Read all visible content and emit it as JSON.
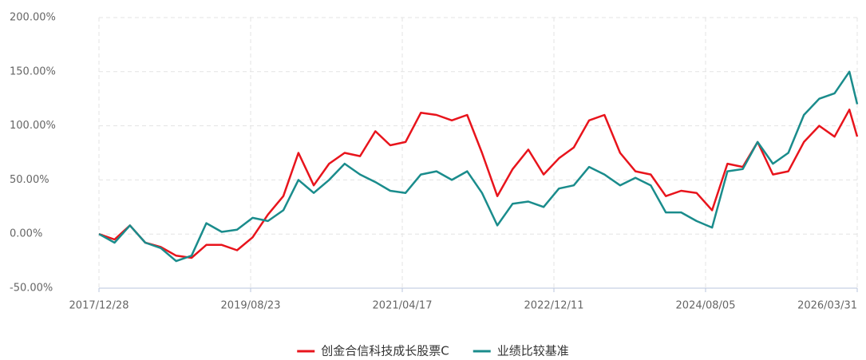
{
  "chart_data": {
    "type": "line",
    "x": [
      "2017/12/28",
      "2018/02/28",
      "2018/04/30",
      "2018/06/30",
      "2018/08/31",
      "2018/10/31",
      "2018/12/31",
      "2019/02/28",
      "2019/04/30",
      "2019/06/30",
      "2019/08/31",
      "2019/10/31",
      "2019/12/31",
      "2020/02/29",
      "2020/04/30",
      "2020/06/30",
      "2020/08/31",
      "2020/10/31",
      "2020/12/31",
      "2021/02/28",
      "2021/04/30",
      "2021/06/30",
      "2021/08/31",
      "2021/10/31",
      "2021/12/31",
      "2022/02/28",
      "2022/04/30",
      "2022/06/30",
      "2022/08/31",
      "2022/10/31",
      "2022/12/31",
      "2023/02/28",
      "2023/04/30",
      "2023/06/30",
      "2023/08/31",
      "2023/10/31",
      "2023/12/31",
      "2024/02/29",
      "2024/04/30",
      "2024/06/30",
      "2024/08/31",
      "2024/10/31",
      "2024/12/31",
      "2025/02/28",
      "2025/04/30",
      "2025/06/30",
      "2025/08/31",
      "2025/10/31",
      "2025/12/31",
      "2026/02/28",
      "2026/03/31"
    ],
    "series": [
      {
        "name": "创金合信科技成长股票C",
        "color": "#e8141c",
        "values": [
          0,
          -5,
          8,
          -8,
          -12,
          -20,
          -22,
          -10,
          -10,
          -15,
          -3,
          18,
          35,
          75,
          45,
          65,
          75,
          72,
          95,
          82,
          85,
          112,
          110,
          105,
          110,
          75,
          35,
          60,
          78,
          55,
          70,
          80,
          105,
          110,
          75,
          58,
          55,
          35,
          40,
          38,
          22,
          65,
          62,
          85,
          55,
          58,
          85,
          100,
          90,
          115,
          90
        ]
      },
      {
        "name": "业绩比较基准",
        "color": "#1a8c8c",
        "values": [
          0,
          -8,
          8,
          -8,
          -13,
          -25,
          -20,
          10,
          2,
          4,
          15,
          12,
          22,
          50,
          38,
          50,
          65,
          55,
          48,
          40,
          38,
          55,
          58,
          50,
          58,
          38,
          8,
          28,
          30,
          25,
          42,
          45,
          62,
          55,
          45,
          52,
          45,
          20,
          20,
          12,
          6,
          58,
          60,
          85,
          65,
          75,
          110,
          125,
          130,
          150,
          120
        ]
      }
    ],
    "xlim": [
      "2017/12/28",
      "2026/03/31"
    ],
    "xticks": [
      "2017/12/28",
      "2019/08/23",
      "2021/04/17",
      "2022/12/11",
      "2024/08/05",
      "2026/03/31"
    ],
    "ylim": [
      -50,
      200
    ],
    "yticks": [
      {
        "value": -50,
        "label": "-50.00%"
      },
      {
        "value": 0,
        "label": "0.00%"
      },
      {
        "value": 50,
        "label": "50.00%"
      },
      {
        "value": 100,
        "label": "100.00%"
      },
      {
        "value": 150,
        "label": "150.00%"
      },
      {
        "value": 200,
        "label": "200.00%"
      }
    ],
    "grid": true,
    "legend": "bottom"
  }
}
